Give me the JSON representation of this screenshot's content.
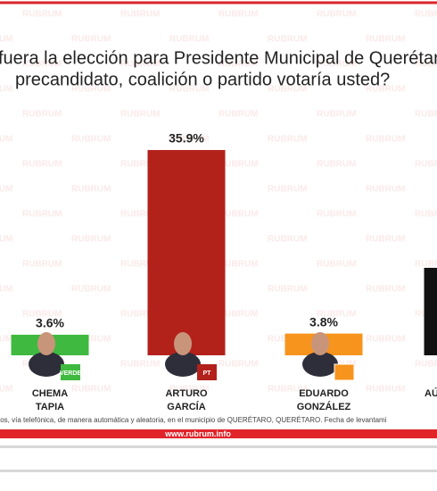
{
  "chart_data": {
    "type": "bar",
    "title_lines": [
      "fuera la elección para Presidente Municipal de Querétar",
      "precandidato, coalición o partido votaría usted?"
    ],
    "watermark": "RUBRUM",
    "categories": [
      [
        "CHEMA",
        "TAPIA"
      ],
      [
        "ARTURO",
        "GARCÍA"
      ],
      [
        "EDUARDO",
        "GONZÁLEZ"
      ],
      [
        "AÚ",
        null
      ]
    ],
    "values": [
      3.6,
      35.9,
      3.8,
      15.3
    ],
    "value_labels": [
      "3.6%",
      "35.9%",
      "3.8%",
      null
    ],
    "colors": [
      "#3fb93f",
      "#b3211b",
      "#f7941d",
      "#111111"
    ],
    "party_logos": [
      "VERDE",
      "PT",
      null,
      null
    ],
    "ylim": [
      0,
      36
    ],
    "footnote": "tos, vía telefónica, de manera automática y aleatoria, en el municipio de QUERÉTARO, QUERÉTARO. Fecha de levantami",
    "website": "www.rubrum.info"
  }
}
